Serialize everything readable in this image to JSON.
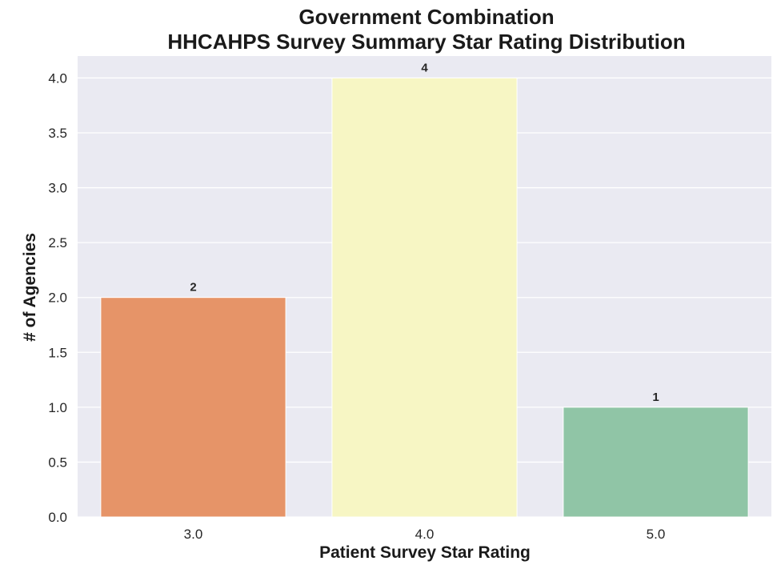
{
  "chart_data": {
    "type": "bar",
    "title": [
      "Government Combination",
      "HHCAHPS Survey Summary Star Rating Distribution"
    ],
    "xlabel": "Patient Survey Star Rating",
    "ylabel": "# of Agencies",
    "categories": [
      "3.0",
      "4.0",
      "5.0"
    ],
    "values": [
      2,
      4,
      1
    ],
    "data_labels": [
      "2",
      "4",
      "1"
    ],
    "bar_colors": [
      "#e69468",
      "#f7f6c4",
      "#90c5a6"
    ],
    "ylim": [
      0,
      4.2
    ],
    "yticks": [
      0.0,
      0.5,
      1.0,
      1.5,
      2.0,
      2.5,
      3.0,
      3.5,
      4.0
    ],
    "ytick_labels": [
      "0.0",
      "0.5",
      "1.0",
      "1.5",
      "2.0",
      "2.5",
      "3.0",
      "3.5",
      "4.0"
    ],
    "grid": true,
    "background_color": "#eaeaf2",
    "grid_color": "#ffffff"
  }
}
